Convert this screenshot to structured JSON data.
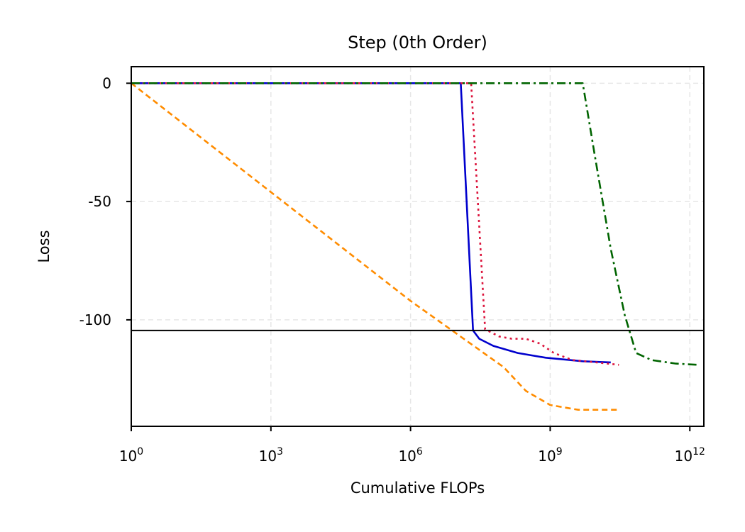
{
  "chart_data": {
    "type": "line",
    "title": "Step (0th Order)",
    "xlabel": "Cumulative FLOPs",
    "ylabel": "Loss",
    "xscale": "log",
    "xlim": [
      1,
      2000000000000.0
    ],
    "ylim": [
      -145,
      7
    ],
    "grid": true,
    "xticks": [
      {
        "base": "10",
        "exp": "0",
        "value": 1
      },
      {
        "base": "10",
        "exp": "3",
        "value": 1000
      },
      {
        "base": "10",
        "exp": "6",
        "value": 1000000
      },
      {
        "base": "10",
        "exp": "9",
        "value": 1000000000
      },
      {
        "base": "10",
        "exp": "12",
        "value": 1000000000000
      }
    ],
    "yticks": [
      {
        "label": "0",
        "value": 0
      },
      {
        "label": "-50",
        "value": -50
      },
      {
        "label": "-100",
        "value": -100
      }
    ],
    "hline": {
      "y": -104.5,
      "color": "#000000"
    },
    "series": [
      {
        "color": "#ff8c00",
        "dash": "8 5",
        "points": [
          [
            1,
            0
          ],
          [
            1000,
            -46
          ],
          [
            1000000,
            -92
          ],
          [
            100000000,
            -120
          ],
          [
            300000000,
            -130
          ],
          [
            1000000000,
            -136
          ],
          [
            4000000000,
            -138
          ],
          [
            30000000000,
            -138
          ]
        ]
      },
      {
        "color": "#0000cd",
        "dash": "",
        "points": [
          [
            1,
            0
          ],
          [
            12000000,
            0
          ],
          [
            22000000,
            -104.5
          ],
          [
            30000000,
            -108
          ],
          [
            60000000,
            -111
          ],
          [
            200000000,
            -114
          ],
          [
            800000000,
            -116
          ],
          [
            5000000000,
            -117.5
          ],
          [
            20000000000,
            -118
          ]
        ]
      },
      {
        "color": "#dc143c",
        "dash": "3 5",
        "points": [
          [
            1,
            0
          ],
          [
            20000000,
            0
          ],
          [
            40000000,
            -104
          ],
          [
            80000000,
            -107
          ],
          [
            150000000,
            -108
          ],
          [
            300000000,
            -108
          ],
          [
            600000000,
            -110
          ],
          [
            1200000000,
            -114
          ],
          [
            3000000000,
            -117
          ],
          [
            10000000000,
            -118
          ],
          [
            30000000000,
            -119
          ]
        ]
      },
      {
        "color": "#006400",
        "dash": "12 5 3 5",
        "points": [
          [
            1,
            0
          ],
          [
            5000000000,
            0
          ],
          [
            9000000000,
            -30
          ],
          [
            20000000000,
            -70
          ],
          [
            40000000000,
            -98
          ],
          [
            70000000000,
            -114
          ],
          [
            150000000000,
            -117
          ],
          [
            500000000000,
            -118.5
          ],
          [
            1500000000000,
            -119
          ]
        ]
      }
    ]
  }
}
